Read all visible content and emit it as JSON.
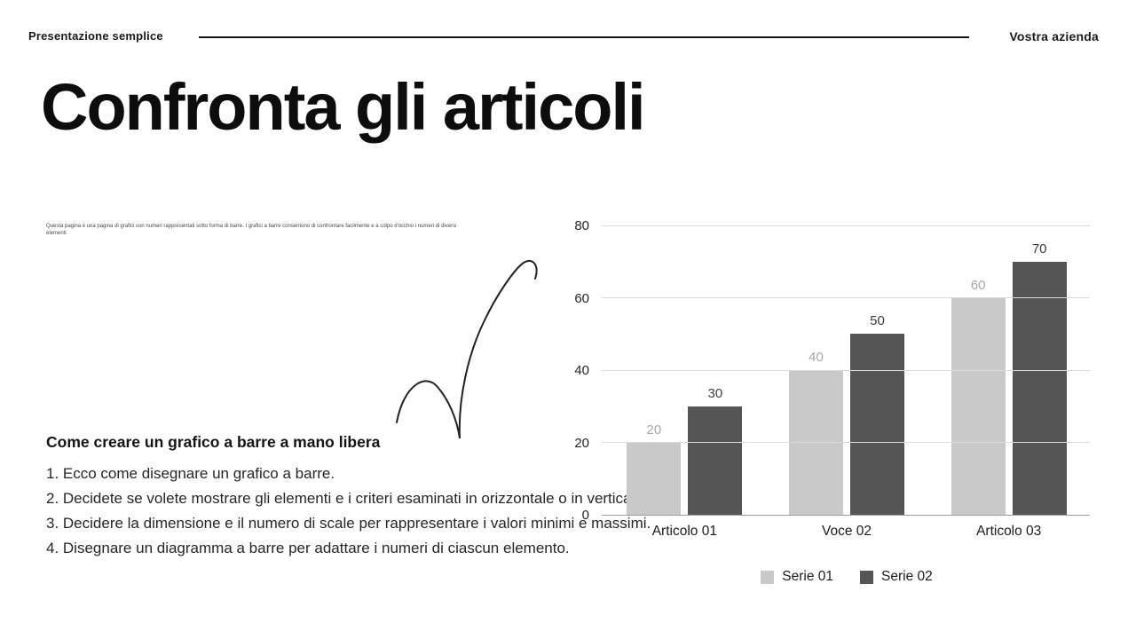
{
  "header": {
    "left": "Presentazione semplice",
    "right": "Vostra azienda"
  },
  "title": "Confronta gli articoli",
  "intro_note": "Questa pagina è una pagina di grafici con numeri rappresentati sotto forma di barre. I grafici a barre consentono di confrontare facilmente e a colpo d'occhio i numeri di diversi elementi",
  "howto": {
    "heading": "Come creare un grafico a barre a mano libera",
    "steps": [
      "1. Ecco come disegnare un grafico a barre.",
      "2. Decidete se volete mostrare gli elementi e i criteri esaminati in orizzontale o in verticale.",
      "3. Decidere la dimensione e il numero di scale per rappresentare i valori minimi e massimi.",
      "4. Disegnare un diagramma a barre per adattare i numeri di ciascun elemento."
    ]
  },
  "chart_data": {
    "type": "bar",
    "title": "",
    "xlabel": "",
    "ylabel": "",
    "categories": [
      "Articolo 01",
      "Voce 02",
      "Articolo 03"
    ],
    "series": [
      {
        "name": "Serie 01",
        "values": [
          20,
          40,
          60
        ],
        "color": "#c9c9c9",
        "label_color": "#a6a6a6"
      },
      {
        "name": "Serie 02",
        "values": [
          30,
          50,
          70
        ],
        "color": "#555555",
        "label_color": "#3d3d3d"
      }
    ],
    "yticks": [
      0,
      20,
      40,
      60,
      80
    ],
    "ylim": [
      0,
      80
    ],
    "grid": true,
    "legend_position": "bottom"
  },
  "colors": {
    "accent_dark": "#141414",
    "grid": "#dadada",
    "axis_text": "#262626"
  }
}
